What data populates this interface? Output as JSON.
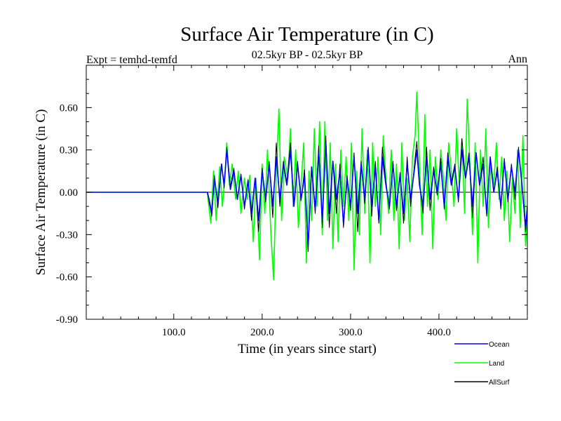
{
  "chart_data": {
    "type": "line",
    "title": "Surface Air Temperature (in C)",
    "subtitle": "02.5kyr BP - 02.5kyr BP",
    "left_label": "Expt = temhd-temfd",
    "right_label": "Ann",
    "xlabel": "Time (in years since start)",
    "ylabel": "Surface Air Temperature (in C)",
    "xlim": [
      1,
      500
    ],
    "ylim": [
      -0.9,
      0.9
    ],
    "x_ticks": [
      100,
      200,
      300,
      400
    ],
    "x_tick_labels": [
      "100.0",
      "200.0",
      "300.0",
      "400.0"
    ],
    "y_ticks": [
      -0.9,
      -0.6,
      -0.3,
      0.0,
      0.3,
      0.6
    ],
    "y_tick_labels": [
      "-0.90",
      "-0.60",
      "-0.30",
      "0.00",
      "0.30",
      "0.60"
    ],
    "legend": [
      {
        "name": "Ocean",
        "color": "#0000ff"
      },
      {
        "name": "Land",
        "color": "#00ff00"
      },
      {
        "name": "AllSurf",
        "color": "#000000"
      }
    ],
    "flat_until_year": 138,
    "series": [
      {
        "name": "Land",
        "color": "#00ff00",
        "x": [
          1,
          138,
          140,
          142,
          145,
          148,
          152,
          155,
          158,
          160,
          163,
          166,
          170,
          173,
          176,
          180,
          183,
          186,
          190,
          193,
          197,
          200,
          203,
          206,
          210,
          213,
          216,
          219,
          222,
          225,
          229,
          232,
          235,
          238,
          241,
          244,
          247,
          250,
          253,
          256,
          259,
          262,
          265,
          268,
          271,
          274,
          277,
          280,
          283,
          286,
          289,
          292,
          295,
          298,
          301,
          304,
          307,
          310,
          313,
          316,
          319,
          322,
          325,
          328,
          331,
          334,
          337,
          340,
          343,
          346,
          349,
          352,
          355,
          358,
          361,
          364,
          367,
          370,
          373,
          375,
          378,
          381,
          384,
          387,
          390,
          393,
          396,
          399,
          402,
          405,
          408,
          411,
          414,
          417,
          420,
          423,
          426,
          429,
          432,
          435,
          438,
          441,
          444,
          447,
          450,
          453,
          456,
          459,
          462,
          465,
          468,
          471,
          474,
          477,
          480,
          483,
          486,
          489,
          492,
          495,
          498,
          500
        ],
        "values": [
          0,
          0,
          -0.12,
          -0.22,
          0.15,
          -0.2,
          0.18,
          -0.1,
          0.12,
          0.35,
          0.05,
          0.2,
          -0.05,
          0.15,
          -0.15,
          0.1,
          -0.05,
          0.12,
          -0.35,
          0.1,
          -0.48,
          0.2,
          -0.15,
          0.3,
          -0.3,
          -0.62,
          0.15,
          0.59,
          -0.2,
          0.25,
          0.1,
          0.45,
          -0.1,
          0.3,
          -0.25,
          0.05,
          0.35,
          -0.5,
          0.15,
          -0.2,
          0.45,
          -0.1,
          0.5,
          -0.3,
          0.5,
          -0.2,
          0.35,
          -0.4,
          0.2,
          -0.35,
          0.3,
          -0.1,
          0.25,
          -0.2,
          0.35,
          -0.55,
          0.15,
          -0.3,
          0.45,
          -0.15,
          0.3,
          -0.5,
          0.35,
          -0.1,
          0.25,
          -0.3,
          0.4,
          0.1,
          -0.15,
          0.3,
          -0.2,
          0.2,
          -0.4,
          0.35,
          -0.2,
          0.1,
          -0.35,
          0.25,
          0.4,
          0.71,
          0.2,
          -0.3,
          0.55,
          -0.1,
          0.3,
          -0.4,
          0.25,
          -0.05,
          0.3,
          0.1,
          -0.2,
          0.35,
          0.15,
          -0.1,
          0.45,
          0.05,
          0.38,
          -0.15,
          0.66,
          0.2,
          -0.3,
          0.35,
          -0.5,
          0.3,
          -0.1,
          0.45,
          -0.25,
          0.2,
          0.05,
          0.35,
          -0.05,
          0.25,
          -0.2,
          0.15,
          -0.35,
          0.1,
          -0.15,
          0.3,
          -0.25,
          0.4,
          -0.38,
          -0.2
        ]
      },
      {
        "name": "Ocean",
        "color": "#0000ff",
        "x": [
          1,
          138,
          140,
          143,
          146,
          150,
          154,
          157,
          160,
          164,
          168,
          172,
          176,
          180,
          184,
          188,
          192,
          196,
          200,
          204,
          208,
          212,
          216,
          220,
          224,
          228,
          232,
          236,
          240,
          244,
          248,
          252,
          256,
          260,
          264,
          268,
          272,
          276,
          280,
          284,
          288,
          292,
          296,
          300,
          304,
          308,
          312,
          316,
          320,
          324,
          328,
          332,
          336,
          340,
          344,
          348,
          352,
          356,
          360,
          364,
          368,
          372,
          375,
          378,
          382,
          386,
          390,
          394,
          398,
          402,
          406,
          410,
          414,
          418,
          422,
          426,
          430,
          434,
          438,
          442,
          446,
          450,
          454,
          458,
          462,
          466,
          470,
          474,
          478,
          482,
          486,
          490,
          494,
          498,
          500
        ],
        "values": [
          0,
          0,
          -0.05,
          -0.15,
          0.1,
          -0.08,
          0.2,
          0.05,
          0.3,
          0.02,
          0.15,
          -0.05,
          0.12,
          -0.1,
          0.08,
          -0.15,
          0.1,
          -0.2,
          0.15,
          -0.05,
          0.2,
          -0.1,
          0.25,
          -0.05,
          0.2,
          0.05,
          0.3,
          -0.1,
          0.2,
          -0.05,
          0.12,
          -0.38,
          0.18,
          -0.12,
          0.28,
          -0.2,
          0.35,
          -0.15,
          0.22,
          -0.05,
          0.15,
          -0.22,
          0.1,
          -0.1,
          0.25,
          -0.15,
          0.2,
          -0.05,
          0.3,
          -0.1,
          0.18,
          -0.2,
          0.25,
          0.05,
          -0.1,
          0.2,
          -0.1,
          0.12,
          -0.15,
          0.2,
          -0.05,
          0.15,
          0.3,
          0.05,
          -0.1,
          0.25,
          -0.05,
          0.15,
          0.0,
          0.2,
          -0.1,
          0.25,
          0.05,
          0.18,
          -0.05,
          0.3,
          0.1,
          0.25,
          -0.1,
          0.28,
          0.05,
          0.2,
          -0.15,
          0.25,
          0.0,
          0.15,
          -0.1,
          0.22,
          -0.05,
          0.18,
          0.0,
          0.3,
          0.05,
          -0.25,
          -0.1
        ]
      },
      {
        "name": "AllSurf",
        "color": "#000000",
        "x": [
          1,
          138,
          140,
          143,
          146,
          150,
          154,
          157,
          160,
          164,
          168,
          172,
          176,
          180,
          184,
          188,
          192,
          196,
          200,
          204,
          208,
          212,
          216,
          220,
          224,
          228,
          232,
          236,
          240,
          244,
          248,
          252,
          256,
          260,
          264,
          268,
          272,
          276,
          280,
          284,
          288,
          292,
          296,
          300,
          304,
          308,
          312,
          316,
          320,
          324,
          328,
          332,
          336,
          340,
          344,
          348,
          352,
          356,
          360,
          364,
          368,
          372,
          375,
          378,
          382,
          386,
          390,
          394,
          398,
          402,
          406,
          410,
          414,
          418,
          422,
          426,
          430,
          434,
          438,
          442,
          446,
          450,
          454,
          458,
          462,
          466,
          470,
          474,
          478,
          482,
          486,
          490,
          494,
          498,
          500
        ],
        "values": [
          0,
          0,
          -0.07,
          -0.17,
          0.12,
          -0.11,
          0.2,
          0.03,
          0.32,
          0.04,
          0.17,
          -0.05,
          0.13,
          -0.12,
          0.09,
          -0.2,
          0.1,
          -0.28,
          0.17,
          -0.07,
          0.22,
          -0.18,
          0.35,
          -0.1,
          0.22,
          0.07,
          0.35,
          -0.1,
          0.22,
          -0.06,
          0.16,
          -0.42,
          0.17,
          -0.15,
          0.33,
          -0.25,
          0.4,
          -0.25,
          0.22,
          -0.15,
          0.2,
          -0.25,
          0.12,
          -0.13,
          0.28,
          -0.28,
          0.22,
          -0.08,
          0.32,
          -0.17,
          0.22,
          -0.22,
          0.32,
          0.07,
          -0.12,
          0.22,
          -0.13,
          0.14,
          -0.22,
          0.25,
          -0.1,
          0.18,
          0.36,
          0.07,
          -0.15,
          0.32,
          -0.13,
          0.18,
          -0.02,
          0.24,
          -0.12,
          0.28,
          0.07,
          0.2,
          -0.07,
          0.38,
          0.1,
          0.28,
          -0.18,
          0.28,
          0.05,
          0.25,
          -0.17,
          0.25,
          0.0,
          0.18,
          -0.12,
          0.24,
          -0.07,
          0.2,
          -0.05,
          0.32,
          0.05,
          -0.28,
          -0.13
        ]
      }
    ]
  }
}
